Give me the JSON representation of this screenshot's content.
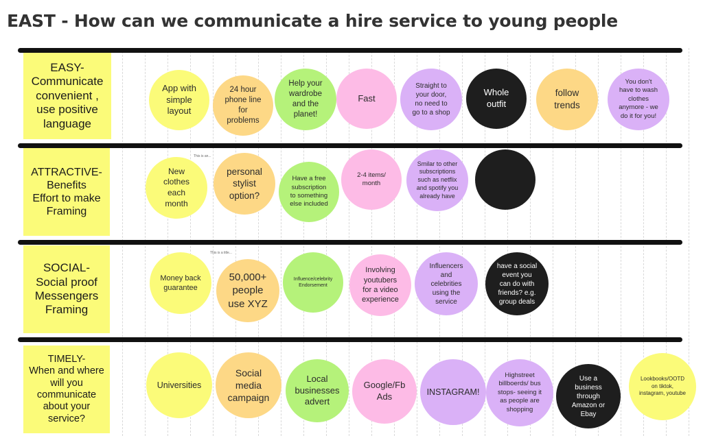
{
  "title": "EAST - How can we communicate a hire service to young people",
  "colors": {
    "yellow": "#fbfb79",
    "orange": "#fdd886",
    "green": "#b5f27a",
    "pink": "#fdbbe6",
    "purple": "#dab1f7",
    "black": "#1e1e1e"
  },
  "rows": [
    {
      "label": "EASY-\nCommunicate\nconvenient ,\nuse positive\nlanguage",
      "notes": [
        {
          "text": "App with\nsimple\nlayout",
          "color": "yellow"
        },
        {
          "text": "24 hour\nphone line\nfor\nproblems",
          "color": "orange"
        },
        {
          "text": "Help your\nwardrobe\nand the\nplanet!",
          "color": "green"
        },
        {
          "text": "Fast",
          "color": "pink"
        },
        {
          "text": "Straight to\nyour door,\nno need to\ngo to a shop",
          "color": "purple"
        },
        {
          "text": "Whole\noutfit",
          "color": "black"
        },
        {
          "text": "follow\ntrends",
          "color": "orange"
        },
        {
          "text": "You don't\nhave to wash\nclothes\nanymore - we\ndo it for you!",
          "color": "purple"
        }
      ]
    },
    {
      "label": "ATTRACTIVE-\nBenefits\nEffort to make\nFraming",
      "tiny_note": "This is an...",
      "notes": [
        {
          "text": "New\nclothes\neach\nmonth",
          "color": "yellow"
        },
        {
          "text": "personal\nstylist\noption?",
          "color": "orange"
        },
        {
          "text": "Have a free\nsubscription\nto something\nelse included",
          "color": "green"
        },
        {
          "text": "2-4 items/\nmonth",
          "color": "pink"
        },
        {
          "text": "Smilar to other\nsubscriptions\nsuch as netflix\nand spotify you\nalready have",
          "color": "purple"
        },
        {
          "text": "",
          "color": "black"
        }
      ]
    },
    {
      "label": "SOCIAL-\nSocial proof\nMessengers\nFraming",
      "tiny_note": "This is a title...",
      "notes": [
        {
          "text": "Money back\nguarantee",
          "color": "yellow"
        },
        {
          "text": "50,000+\npeople\nuse XYZ",
          "color": "orange"
        },
        {
          "text": "Influence/celebrity\nEndorsement",
          "color": "green"
        },
        {
          "text": "Involving\nyoutubers\nfor a video\nexperience",
          "color": "pink"
        },
        {
          "text": "Influencers\nand\ncelebrities\nusing the\nservice",
          "color": "purple"
        },
        {
          "text": "have a social\nevent you\ncan do with\nfriends? e.g.\ngroup deals",
          "color": "black"
        }
      ]
    },
    {
      "label": "TIMELY-\nWhen and where\nwill you\ncommunicate\nabout your\nservice?",
      "notes": [
        {
          "text": "Universities",
          "color": "yellow"
        },
        {
          "text": "Social\nmedia\ncampaign",
          "color": "orange"
        },
        {
          "text": "Local\nbusinesses\nadvert",
          "color": "green"
        },
        {
          "text": "Google/Fb\nAds",
          "color": "pink"
        },
        {
          "text": "INSTAGRAM!",
          "color": "purple"
        },
        {
          "text": "Highstreet\nbillboerds/ bus\nstops- seeing it\nas people are\nshopping",
          "color": "purple"
        },
        {
          "text": "Use a\nbusiness\nthrough\nAmazon or\nEbay",
          "color": "black"
        },
        {
          "text": "Lookbooks/OOTD\non tiktok,\ninstagram, youtube",
          "color": "yellow"
        }
      ]
    }
  ]
}
